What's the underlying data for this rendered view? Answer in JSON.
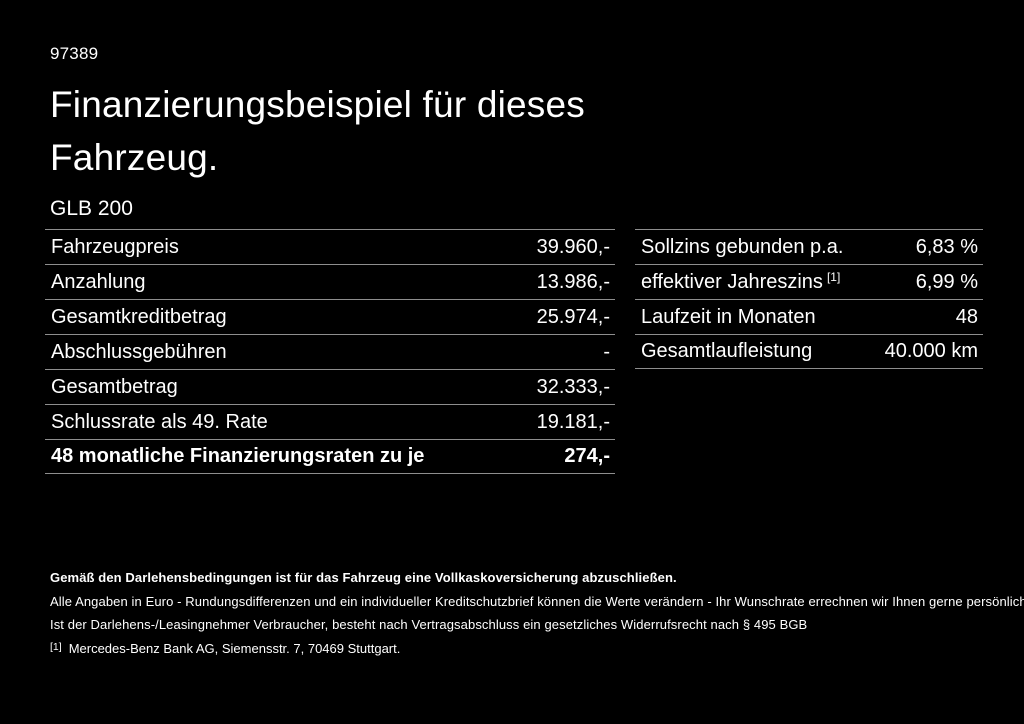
{
  "page": {
    "background_color": "#000000",
    "text_color": "#ffffff",
    "divider_color": "#8e8e8e",
    "doc_number": "97389",
    "title_line1": "Finanzierungsbeispiel für dieses",
    "title_line2": "Fahrzeug.",
    "model": "GLB 200"
  },
  "left_table": {
    "rows": [
      {
        "label": "Fahrzeugpreis",
        "value": "39.960,-"
      },
      {
        "label": "Anzahlung",
        "value": "13.986,-"
      },
      {
        "label": "Gesamtkreditbetrag",
        "value": "25.974,-"
      },
      {
        "label": "Abschlussgebühren",
        "value": "-"
      },
      {
        "label": "Gesamtbetrag",
        "value": "32.333,-"
      },
      {
        "label": "Schlussrate als 49. Rate",
        "value": "19.181,-"
      },
      {
        "label": "48 monatliche Finanzierungsraten zu je",
        "value": "274,-",
        "bold": true
      }
    ]
  },
  "right_table": {
    "rows": [
      {
        "label": "Sollzins gebunden p.a.",
        "value": "6,83 %"
      },
      {
        "label": "effektiver Jahreszins",
        "sup": "[1]",
        "value": "6,99 %"
      },
      {
        "label": "Laufzeit in Monaten",
        "value": "48"
      },
      {
        "label": "Gesamtlaufleistung",
        "value": "40.000 km"
      }
    ]
  },
  "footer": {
    "line_bold": "Gemäß den Darlehensbedingungen ist für das Fahrzeug eine Vollkaskoversicherung abzuschließen.",
    "line2": "Alle Angaben in Euro - Rundungsdifferenzen und ein individueller Kreditschutzbrief können die Werte verändern - Ihr Wunschrate errechnen wir Ihnen gerne persönlich",
    "line3": "Ist der Darlehens-/Leasingnehmer Verbraucher, besteht nach Vertragsabschluss ein gesetzliches Widerrufsrecht nach § 495 BGB",
    "footnote_marker": "[1]",
    "footnote_text": "Mercedes-Benz Bank AG, Siemensstr. 7, 70469 Stuttgart."
  }
}
